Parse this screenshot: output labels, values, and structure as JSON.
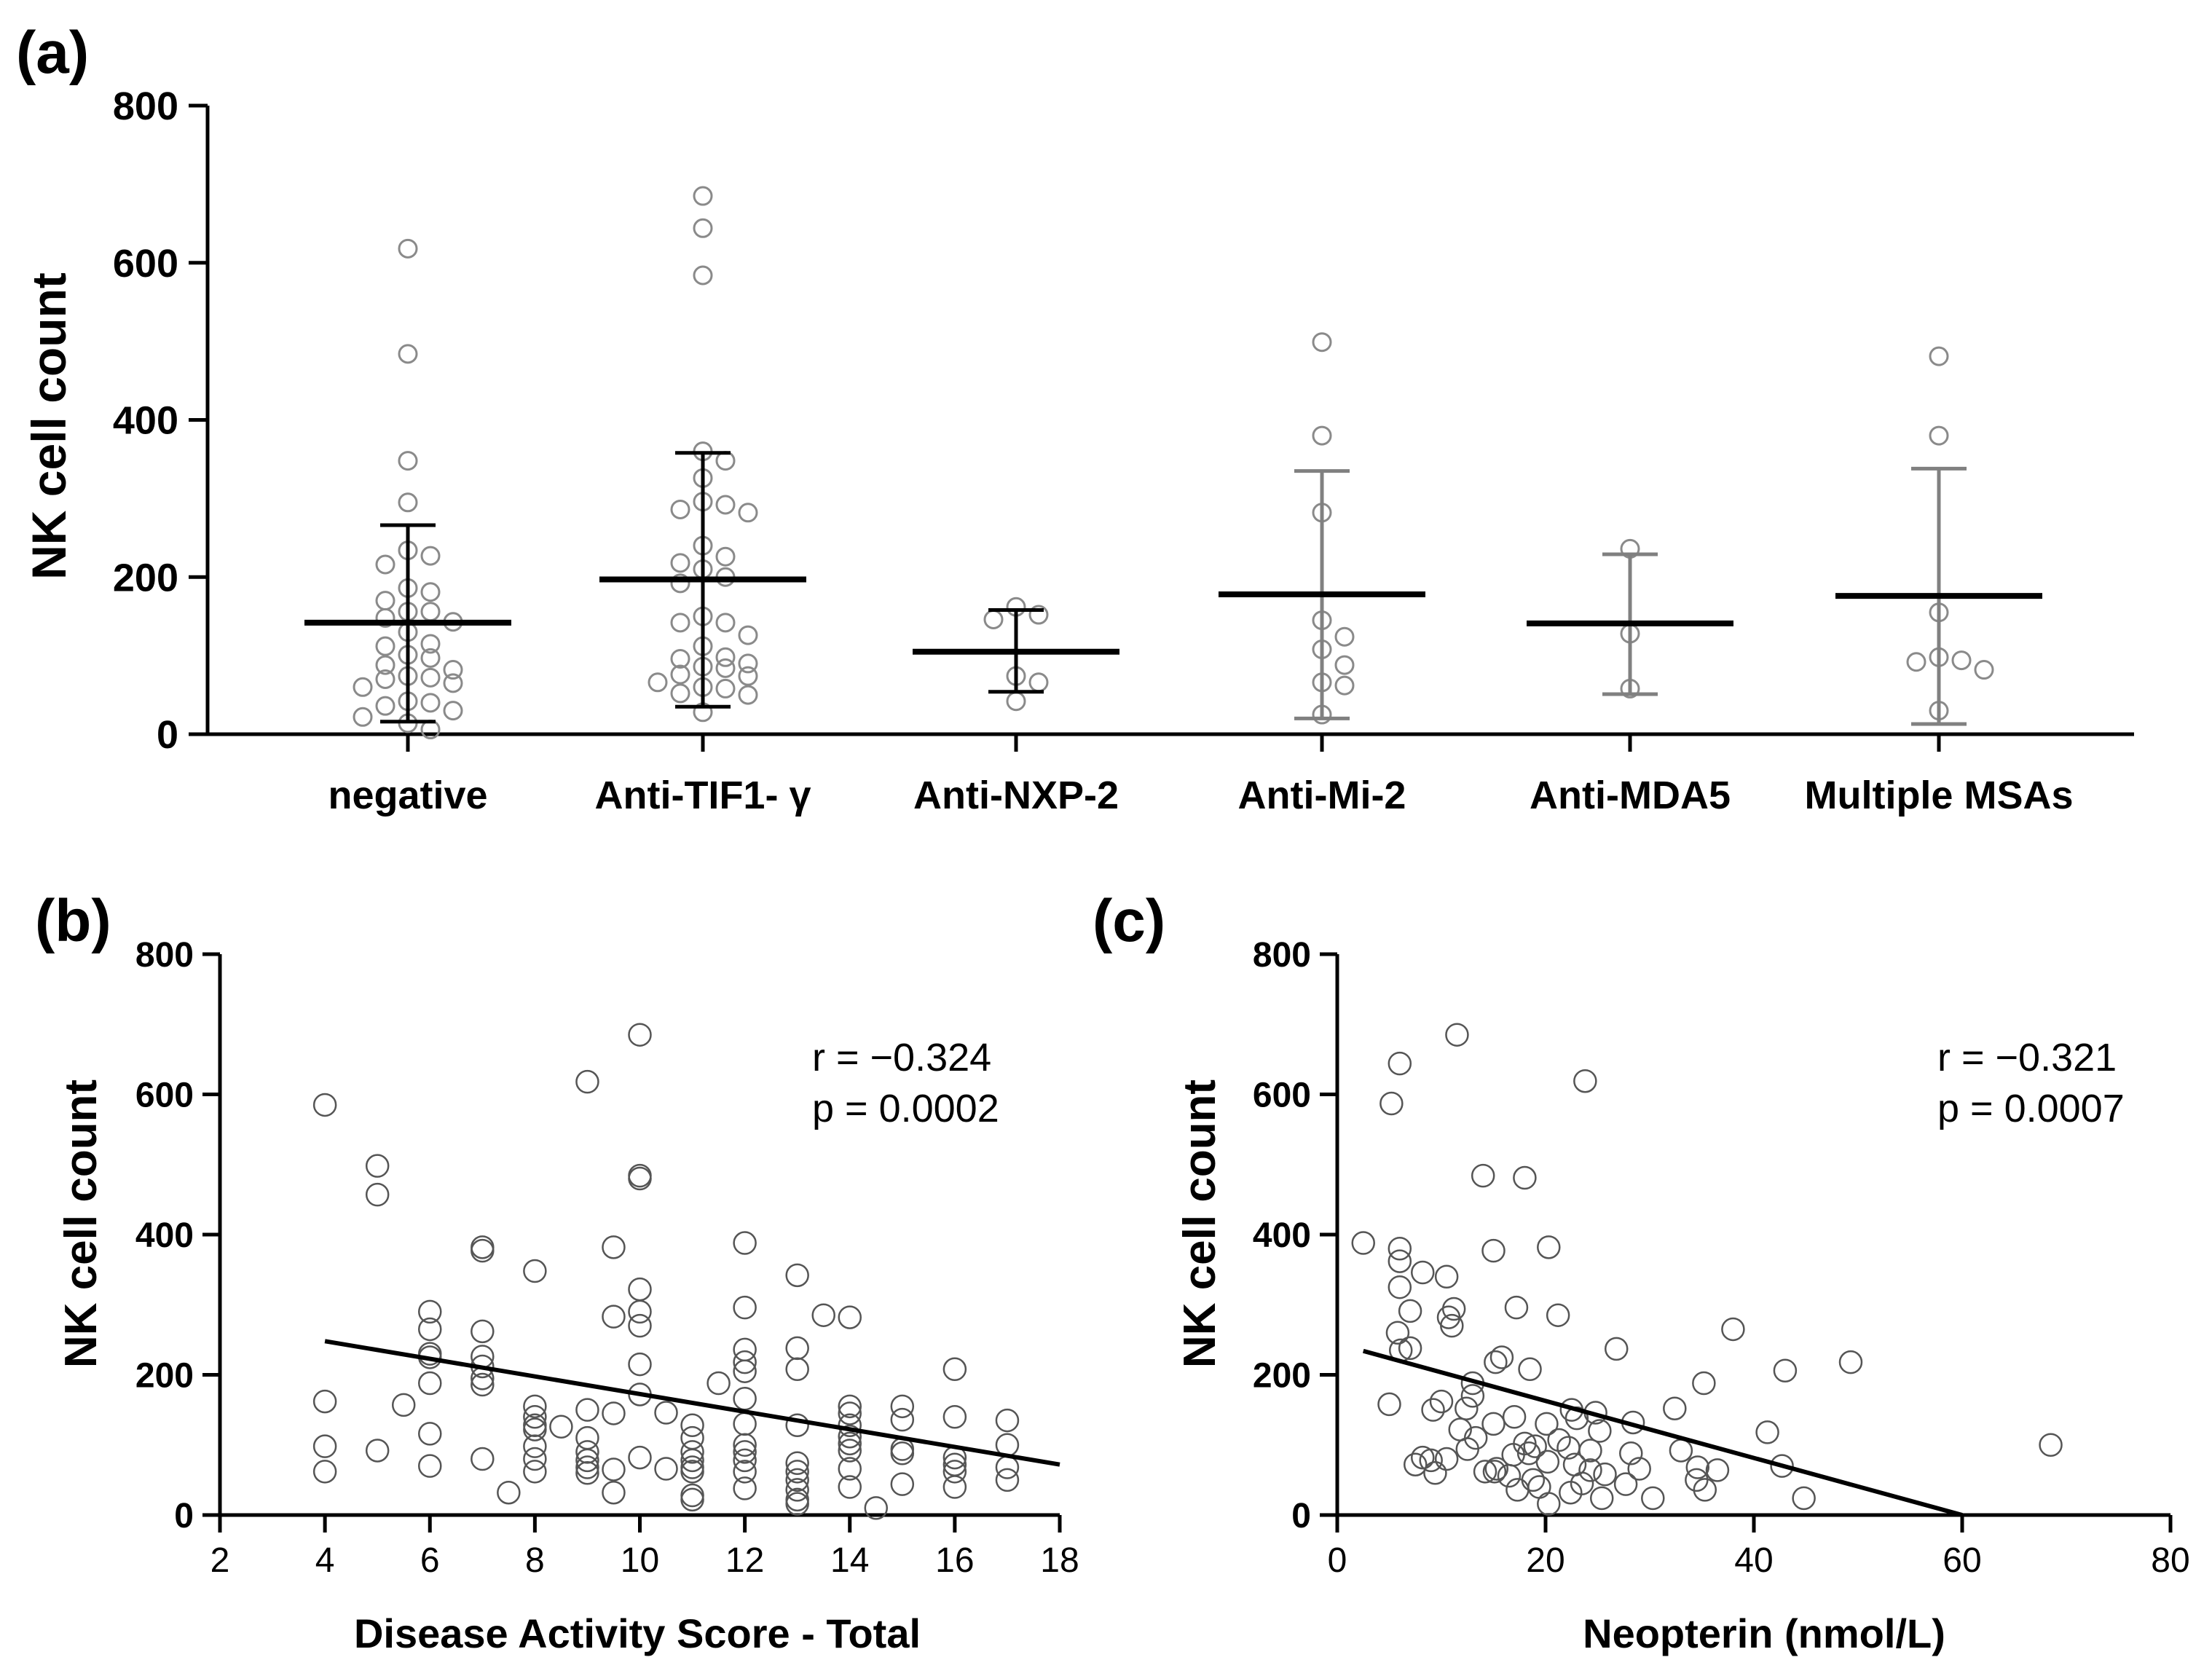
{
  "chart_data": [
    {
      "panel_label": "(a)",
      "type": "scatter",
      "ylabel": "NK cell count",
      "ylim": [
        0,
        800
      ],
      "yticks": [
        0,
        200,
        400,
        600,
        800
      ],
      "categories": [
        "negative",
        "Anti-TIF1- γ",
        "Anti-NXP-2",
        "Anti-Mi-2",
        "Anti-MDA5",
        "Multiple MSAs"
      ],
      "groups": [
        {
          "name": "negative",
          "mean": 142,
          "sd_low": 16,
          "sd_high": 266,
          "bar_color": "#000000",
          "points": [
            618,
            484,
            348,
            295,
            234,
            216,
            227,
            186,
            181,
            170,
            156,
            148,
            130,
            143,
            115,
            112,
            101,
            97,
            88,
            82,
            74,
            72,
            70,
            65,
            60,
            40,
            36,
            30,
            22,
            14,
            6,
            156,
            42
          ]
        },
        {
          "name": "Anti-TIF1- γ",
          "mean": 197,
          "sd_low": 35,
          "sd_high": 358,
          "bar_color": "#000000",
          "points": [
            685,
            644,
            584,
            360,
            348,
            326,
            296,
            292,
            286,
            282,
            240,
            226,
            218,
            210,
            200,
            192,
            150,
            142,
            142,
            126,
            112,
            98,
            96,
            90,
            86,
            84,
            76,
            74,
            66,
            60,
            58,
            52,
            50,
            28
          ]
        },
        {
          "name": "Anti-NXP-2",
          "mean": 105,
          "sd_low": 54,
          "sd_high": 158,
          "bar_color": "#000000",
          "points": [
            162,
            152,
            146,
            74,
            66,
            42
          ]
        },
        {
          "name": "Anti-Mi-2",
          "mean": 178,
          "sd_low": 20,
          "sd_high": 335,
          "bar_color": "#808080",
          "points": [
            499,
            380,
            282,
            145,
            124,
            108,
            88,
            66,
            62,
            25
          ]
        },
        {
          "name": "Anti-MDA5",
          "mean": 141,
          "sd_low": 51,
          "sd_high": 229,
          "bar_color": "#808080",
          "points": [
            236,
            128,
            58
          ]
        },
        {
          "name": "Multiple MSAs",
          "mean": 176,
          "sd_low": 13,
          "sd_high": 338,
          "bar_color": "#808080",
          "points": [
            481,
            380,
            155,
            98,
            94,
            92,
            82,
            30
          ]
        }
      ]
    },
    {
      "panel_label": "(b)",
      "type": "scatter",
      "xlabel": "Disease Activity Score - Total",
      "ylabel": "NK cell count",
      "xlim": [
        2,
        18
      ],
      "ylim": [
        0,
        800
      ],
      "xticks": [
        2,
        4,
        6,
        8,
        10,
        12,
        14,
        16,
        18
      ],
      "yticks": [
        0,
        200,
        400,
        600,
        800
      ],
      "annotation": [
        "r = −0.324",
        "p = 0.0002"
      ],
      "trendline": {
        "x": [
          4,
          18
        ],
        "y": [
          248,
          72
        ]
      },
      "points": [
        [
          4,
          585
        ],
        [
          4,
          162
        ],
        [
          4,
          98
        ],
        [
          4,
          62
        ],
        [
          5,
          498
        ],
        [
          5,
          457
        ],
        [
          5,
          92
        ],
        [
          5.5,
          157
        ],
        [
          6,
          290
        ],
        [
          6,
          265
        ],
        [
          6,
          230
        ],
        [
          6,
          225
        ],
        [
          6,
          188
        ],
        [
          6,
          116
        ],
        [
          6,
          70
        ],
        [
          7,
          382
        ],
        [
          7,
          377
        ],
        [
          7,
          262
        ],
        [
          7,
          226
        ],
        [
          7,
          212
        ],
        [
          7,
          195
        ],
        [
          7,
          186
        ],
        [
          7,
          80
        ],
        [
          7.5,
          32
        ],
        [
          8,
          348
        ],
        [
          8,
          155
        ],
        [
          8,
          140
        ],
        [
          8,
          128
        ],
        [
          8,
          122
        ],
        [
          8,
          98
        ],
        [
          8,
          80
        ],
        [
          8,
          62
        ],
        [
          8.5,
          126
        ],
        [
          9,
          618
        ],
        [
          9,
          150
        ],
        [
          9,
          110
        ],
        [
          9,
          90
        ],
        [
          9,
          78
        ],
        [
          9,
          68
        ],
        [
          9,
          60
        ],
        [
          9.5,
          382
        ],
        [
          9.5,
          283
        ],
        [
          9.5,
          145
        ],
        [
          9.5,
          65
        ],
        [
          9.5,
          32
        ],
        [
          10,
          685
        ],
        [
          10,
          484
        ],
        [
          10,
          480
        ],
        [
          10,
          322
        ],
        [
          10,
          290
        ],
        [
          10,
          270
        ],
        [
          10,
          215
        ],
        [
          10,
          172
        ],
        [
          10,
          82
        ],
        [
          10.5,
          146
        ],
        [
          10.5,
          66
        ],
        [
          11,
          128
        ],
        [
          11,
          110
        ],
        [
          11,
          90
        ],
        [
          11,
          78
        ],
        [
          11,
          68
        ],
        [
          11,
          62
        ],
        [
          11,
          28
        ],
        [
          11,
          22
        ],
        [
          11.5,
          188
        ],
        [
          12,
          388
        ],
        [
          12,
          296
        ],
        [
          12,
          236
        ],
        [
          12,
          218
        ],
        [
          12,
          205
        ],
        [
          12,
          166
        ],
        [
          12,
          130
        ],
        [
          12,
          100
        ],
        [
          12,
          90
        ],
        [
          12,
          78
        ],
        [
          12,
          62
        ],
        [
          12,
          38
        ],
        [
          13,
          342
        ],
        [
          13,
          238
        ],
        [
          13,
          208
        ],
        [
          13,
          128
        ],
        [
          13,
          74
        ],
        [
          13,
          62
        ],
        [
          13,
          50
        ],
        [
          13,
          36
        ],
        [
          13,
          22
        ],
        [
          13,
          16
        ],
        [
          13.5,
          285
        ],
        [
          14,
          282
        ],
        [
          14,
          155
        ],
        [
          14,
          145
        ],
        [
          14,
          128
        ],
        [
          14,
          112
        ],
        [
          14,
          102
        ],
        [
          14,
          92
        ],
        [
          14,
          66
        ],
        [
          14,
          40
        ],
        [
          14.5,
          10
        ],
        [
          15,
          155
        ],
        [
          15,
          136
        ],
        [
          15,
          94
        ],
        [
          15,
          88
        ],
        [
          15,
          44
        ],
        [
          16,
          208
        ],
        [
          16,
          140
        ],
        [
          16,
          82
        ],
        [
          16,
          72
        ],
        [
          16,
          62
        ],
        [
          16,
          40
        ],
        [
          17,
          135
        ],
        [
          17,
          100
        ],
        [
          17,
          68
        ],
        [
          17,
          50
        ]
      ]
    },
    {
      "panel_label": "(c)",
      "type": "scatter",
      "xlabel": "Neopterin (nmol/L)",
      "ylabel": "NK cell count",
      "xlim": [
        0,
        80
      ],
      "ylim": [
        0,
        800
      ],
      "xticks": [
        0,
        20,
        40,
        60,
        80
      ],
      "yticks": [
        0,
        200,
        400,
        600,
        800
      ],
      "annotation": [
        "r = −0.321",
        "p = 0.0007"
      ],
      "trendline": {
        "x": [
          2.5,
          60
        ],
        "y": [
          234,
          0
        ]
      },
      "points": [
        [
          11.5,
          685
        ],
        [
          6,
          644
        ],
        [
          5.2,
          587
        ],
        [
          23.8,
          619
        ],
        [
          14,
          484
        ],
        [
          18,
          481
        ],
        [
          2.5,
          388
        ],
        [
          6,
          380
        ],
        [
          15,
          377
        ],
        [
          20.3,
          382
        ],
        [
          6,
          362
        ],
        [
          8.2,
          346
        ],
        [
          10.5,
          340
        ],
        [
          6,
          325
        ],
        [
          11.2,
          294
        ],
        [
          17.2,
          296
        ],
        [
          7,
          291
        ],
        [
          10.7,
          282
        ],
        [
          21.2,
          285
        ],
        [
          11,
          270
        ],
        [
          5.8,
          260
        ],
        [
          6.1,
          235
        ],
        [
          26.8,
          237
        ],
        [
          7,
          238
        ],
        [
          38,
          265
        ],
        [
          15.8,
          225
        ],
        [
          15.2,
          218
        ],
        [
          18.5,
          208
        ],
        [
          13,
          188
        ],
        [
          35.2,
          188
        ],
        [
          43,
          206
        ],
        [
          49.3,
          218
        ],
        [
          13,
          170
        ],
        [
          10,
          162
        ],
        [
          5,
          158
        ],
        [
          9.2,
          150
        ],
        [
          12.4,
          152
        ],
        [
          22.5,
          150
        ],
        [
          24.8,
          146
        ],
        [
          32.4,
          152
        ],
        [
          17,
          140
        ],
        [
          23,
          138
        ],
        [
          28.4,
          132
        ],
        [
          15,
          130
        ],
        [
          20.1,
          130
        ],
        [
          11.8,
          122
        ],
        [
          25.2,
          120
        ],
        [
          41.3,
          118
        ],
        [
          13.3,
          110
        ],
        [
          21.3,
          107
        ],
        [
          18,
          102
        ],
        [
          19,
          98
        ],
        [
          12.5,
          94
        ],
        [
          22.2,
          96
        ],
        [
          33,
          92
        ],
        [
          24.3,
          92
        ],
        [
          18.4,
          88
        ],
        [
          16.9,
          86
        ],
        [
          28.2,
          88
        ],
        [
          10.5,
          80
        ],
        [
          9,
          78
        ],
        [
          7.5,
          72
        ],
        [
          20.2,
          76
        ],
        [
          22.8,
          72
        ],
        [
          34.6,
          68
        ],
        [
          15.3,
          66
        ],
        [
          14.2,
          62
        ],
        [
          24.3,
          64
        ],
        [
          25.7,
          58
        ],
        [
          29,
          66
        ],
        [
          36.5,
          64
        ],
        [
          42.7,
          70
        ],
        [
          9.4,
          60
        ],
        [
          16.5,
          56
        ],
        [
          18.8,
          50
        ],
        [
          23.5,
          45
        ],
        [
          27.7,
          44
        ],
        [
          34.5,
          50
        ],
        [
          35.3,
          36
        ],
        [
          17.3,
          36
        ],
        [
          22.4,
          32
        ],
        [
          25.4,
          24
        ],
        [
          30.3,
          24
        ],
        [
          44.8,
          24
        ],
        [
          20.3,
          16
        ],
        [
          15.1,
          62
        ],
        [
          8.2,
          82
        ],
        [
          19.4,
          40
        ],
        [
          68.5,
          100
        ]
      ]
    }
  ]
}
